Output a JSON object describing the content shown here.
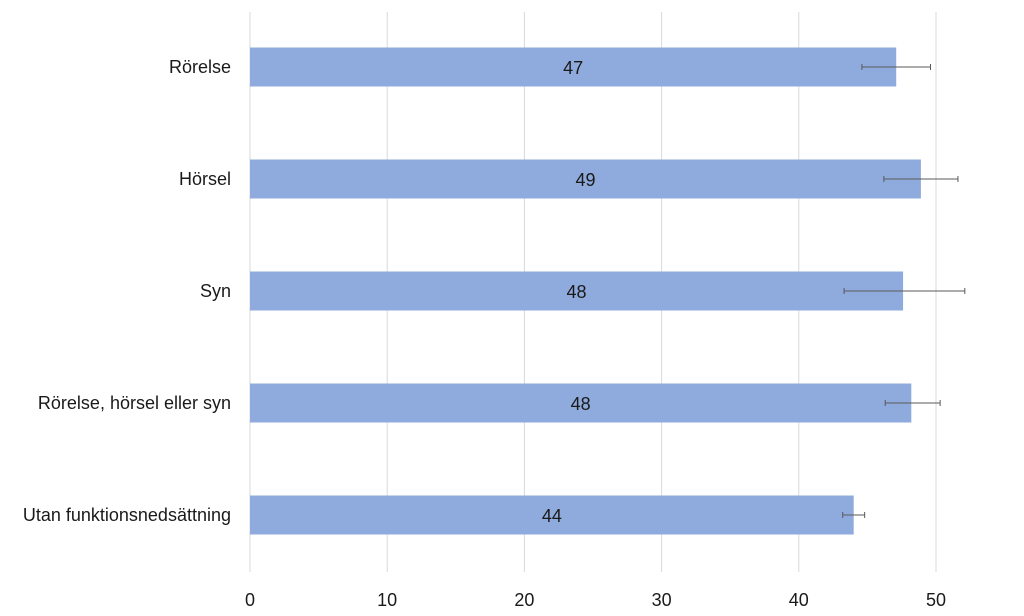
{
  "chart_data": {
    "type": "bar",
    "orientation": "horizontal",
    "categories": [
      "Rörelse",
      "Hörsel",
      "Syn",
      "Rörelse, hörsel eller syn",
      "Utan funktionsnedsättning"
    ],
    "values": [
      47.1,
      48.9,
      47.6,
      48.2,
      44.0
    ],
    "data_labels": [
      "47",
      "49",
      "48",
      "48",
      "44"
    ],
    "error_low": [
      44.6,
      46.2,
      43.3,
      46.3,
      43.2
    ],
    "error_high": [
      49.6,
      51.6,
      52.1,
      50.3,
      44.8
    ],
    "xlim": [
      0,
      50
    ],
    "x_ticks": [
      0,
      10,
      20,
      30,
      40,
      50
    ],
    "x_tick_labels": [
      "0",
      "10",
      "20",
      "30",
      "40",
      "50"
    ],
    "grid": "vertical",
    "legend": "none",
    "title": "",
    "xlabel": "",
    "ylabel": "",
    "colors": {
      "bar": "#8faadc",
      "grid": "#d9d9d9",
      "error_bar": "#595959",
      "text": "#1a1a1a"
    }
  }
}
